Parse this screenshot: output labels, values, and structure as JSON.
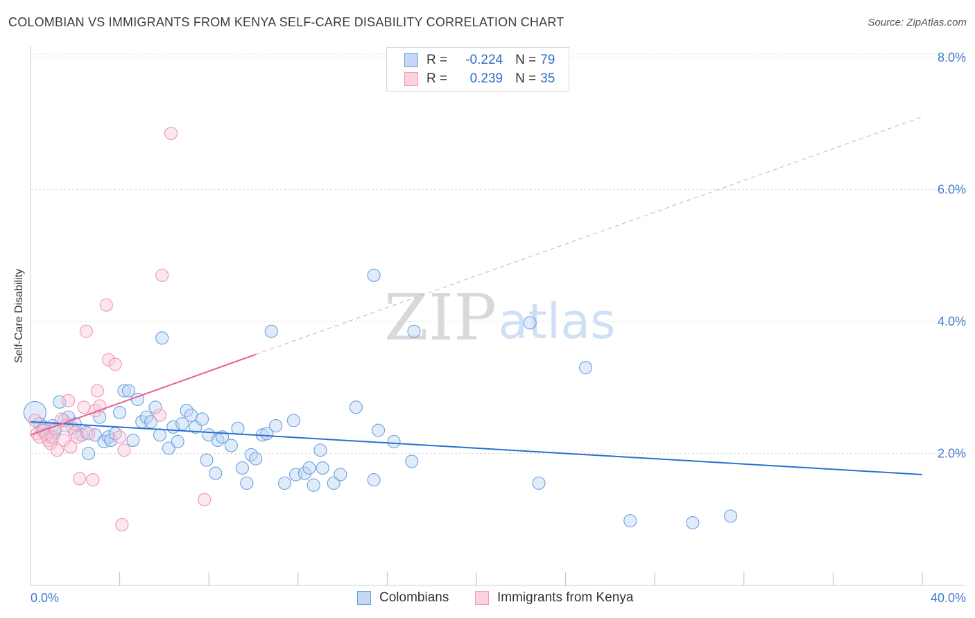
{
  "title": "COLOMBIAN VS IMMIGRANTS FROM KENYA SELF-CARE DISABILITY CORRELATION CHART",
  "source": "Source: ZipAtlas.com",
  "watermark": {
    "zip": "ZIP",
    "atlas": "atlas"
  },
  "legend": {
    "r_label": "R =",
    "n_label": "N =",
    "rows": [
      {
        "r": "-0.224",
        "n": "79"
      },
      {
        "r": "0.239",
        "n": "35"
      }
    ]
  },
  "bottom_legend": [
    "Colombians",
    "Immigrants from Kenya"
  ],
  "chart_data": {
    "type": "scatter",
    "title": "COLOMBIAN VS IMMIGRANTS FROM KENYA SELF-CARE DISABILITY CORRELATION CHART",
    "xlabel": "",
    "ylabel": "Self-Care Disability",
    "xlim": [
      0,
      40
    ],
    "ylim": [
      0,
      8.3
    ],
    "x_tick_labels": [
      "0.0%",
      "40.0%"
    ],
    "y_ticks": [
      2,
      4,
      6,
      8
    ],
    "y_tick_labels": [
      "2.0%",
      "4.0%",
      "6.0%",
      "8.0%"
    ],
    "grid": true,
    "legend_position": "top-center",
    "colors": {
      "colombians": "#6a9fe0",
      "kenya": "#f29bb8",
      "blue_line": "#2a6fd1",
      "pink_line": "#e8608f"
    },
    "series": [
      {
        "name": "Colombians",
        "color": "#6a9fe0",
        "r": -0.224,
        "n": 79,
        "trend": {
          "x": [
            0,
            40
          ],
          "y": [
            2.48,
            1.68
          ],
          "style": "solid"
        },
        "points": [
          [
            0.2,
            2.62
          ],
          [
            0.4,
            2.45
          ],
          [
            0.5,
            2.35
          ],
          [
            0.6,
            2.4
          ],
          [
            0.8,
            2.3
          ],
          [
            0.9,
            2.25
          ],
          [
            1.0,
            2.42
          ],
          [
            1.1,
            2.35
          ],
          [
            1.3,
            2.78
          ],
          [
            1.5,
            2.5
          ],
          [
            1.7,
            2.55
          ],
          [
            1.9,
            2.38
          ],
          [
            2.0,
            2.45
          ],
          [
            2.3,
            2.28
          ],
          [
            2.5,
            2.32
          ],
          [
            2.6,
            2.0
          ],
          [
            2.9,
            2.28
          ],
          [
            3.1,
            2.55
          ],
          [
            3.3,
            2.18
          ],
          [
            3.5,
            2.25
          ],
          [
            3.6,
            2.2
          ],
          [
            3.8,
            2.3
          ],
          [
            4.0,
            2.62
          ],
          [
            4.2,
            2.95
          ],
          [
            4.4,
            2.95
          ],
          [
            4.6,
            2.2
          ],
          [
            4.8,
            2.82
          ],
          [
            5.0,
            2.48
          ],
          [
            5.2,
            2.55
          ],
          [
            5.4,
            2.48
          ],
          [
            5.6,
            2.7
          ],
          [
            5.8,
            2.28
          ],
          [
            5.9,
            3.75
          ],
          [
            6.2,
            2.08
          ],
          [
            6.4,
            2.4
          ],
          [
            6.6,
            2.18
          ],
          [
            6.8,
            2.45
          ],
          [
            7.0,
            2.65
          ],
          [
            7.2,
            2.58
          ],
          [
            7.4,
            2.4
          ],
          [
            7.7,
            2.52
          ],
          [
            7.9,
            1.9
          ],
          [
            8.0,
            2.28
          ],
          [
            8.3,
            1.7
          ],
          [
            8.4,
            2.2
          ],
          [
            8.6,
            2.25
          ],
          [
            9.0,
            2.12
          ],
          [
            9.3,
            2.38
          ],
          [
            9.5,
            1.78
          ],
          [
            9.7,
            1.55
          ],
          [
            9.9,
            1.98
          ],
          [
            10.1,
            1.92
          ],
          [
            10.4,
            2.28
          ],
          [
            10.6,
            2.3
          ],
          [
            10.8,
            3.85
          ],
          [
            11.0,
            2.42
          ],
          [
            11.4,
            1.55
          ],
          [
            11.8,
            2.5
          ],
          [
            11.9,
            1.68
          ],
          [
            12.3,
            1.7
          ],
          [
            12.5,
            1.78
          ],
          [
            12.7,
            1.52
          ],
          [
            13.0,
            2.05
          ],
          [
            13.1,
            1.78
          ],
          [
            13.6,
            1.55
          ],
          [
            13.9,
            1.68
          ],
          [
            14.6,
            2.7
          ],
          [
            15.4,
            1.6
          ],
          [
            15.6,
            2.35
          ],
          [
            15.4,
            4.7
          ],
          [
            16.3,
            2.18
          ],
          [
            17.2,
            3.85
          ],
          [
            17.1,
            1.88
          ],
          [
            22.4,
            3.98
          ],
          [
            22.8,
            1.55
          ],
          [
            24.9,
            3.3
          ],
          [
            26.9,
            0.98
          ],
          [
            29.7,
            0.95
          ],
          [
            31.4,
            1.05
          ]
        ]
      },
      {
        "name": "Immigrants from Kenya",
        "color": "#f29bb8",
        "r": 0.239,
        "n": 35,
        "trend": {
          "solid": {
            "x": [
              0,
              10.1
            ],
            "y": [
              2.28,
              3.5
            ]
          },
          "dashed": {
            "x": [
              10.1,
              40
            ],
            "y": [
              3.5,
              7.1
            ]
          }
        },
        "points": [
          [
            0.2,
            2.5
          ],
          [
            0.3,
            2.3
          ],
          [
            0.4,
            2.25
          ],
          [
            0.6,
            2.35
          ],
          [
            0.7,
            2.28
          ],
          [
            0.8,
            2.2
          ],
          [
            0.9,
            2.15
          ],
          [
            1.0,
            2.25
          ],
          [
            1.1,
            2.38
          ],
          [
            1.2,
            2.05
          ],
          [
            1.4,
            2.52
          ],
          [
            1.5,
            2.2
          ],
          [
            1.6,
            2.42
          ],
          [
            1.7,
            2.8
          ],
          [
            1.8,
            2.1
          ],
          [
            2.0,
            2.32
          ],
          [
            2.1,
            2.25
          ],
          [
            2.2,
            1.62
          ],
          [
            2.4,
            2.7
          ],
          [
            2.5,
            3.85
          ],
          [
            2.6,
            2.3
          ],
          [
            2.8,
            1.6
          ],
          [
            2.9,
            2.65
          ],
          [
            3.0,
            2.95
          ],
          [
            3.1,
            2.72
          ],
          [
            3.4,
            4.25
          ],
          [
            3.5,
            3.42
          ],
          [
            3.8,
            3.35
          ],
          [
            4.0,
            2.25
          ],
          [
            4.2,
            2.05
          ],
          [
            4.1,
            0.92
          ],
          [
            5.9,
            4.7
          ],
          [
            5.8,
            2.58
          ],
          [
            6.3,
            6.85
          ],
          [
            7.8,
            1.3
          ]
        ]
      }
    ]
  }
}
